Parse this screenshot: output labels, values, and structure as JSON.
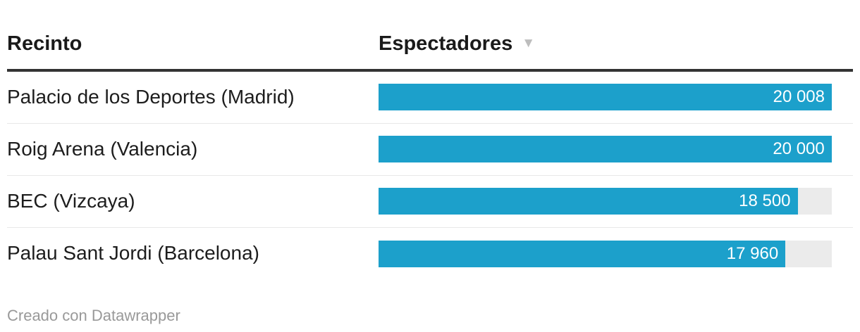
{
  "table": {
    "columns": [
      {
        "label": "Recinto"
      },
      {
        "label": "Espectadores"
      }
    ],
    "sort_icon": "▼",
    "sorted_column": "Espectadores",
    "sort_direction": "desc"
  },
  "chart_data": {
    "type": "bar",
    "title": "",
    "categories": [
      "Palacio de los Deportes (Madrid)",
      "Roig Arena (Valencia)",
      "BEC (Vizcaya)",
      "Palau Sant Jordi (Barcelona)"
    ],
    "values": [
      20008,
      20000,
      18500,
      17960
    ],
    "value_labels": [
      "20 008",
      "20 000",
      "18 500",
      "17 960"
    ],
    "xlabel": "Espectadores",
    "ylabel": "Recinto",
    "xlim": [
      0,
      20008
    ],
    "grid": "off",
    "legend": "none",
    "bar_color": "#1ca0cb",
    "track_color": "#ebebeb"
  },
  "footer": {
    "attribution": "Creado con Datawrapper"
  },
  "colors": {
    "bar": "#1ca0cb",
    "track": "#ebebeb",
    "header_rule": "#333333",
    "row_divider": "#e8e8e8",
    "heading_text": "#1a1a1a",
    "label_text": "#1d1d1d",
    "value_text": "#ffffff",
    "footer_text": "#999999",
    "sort_icon": "#bdbdbd"
  }
}
